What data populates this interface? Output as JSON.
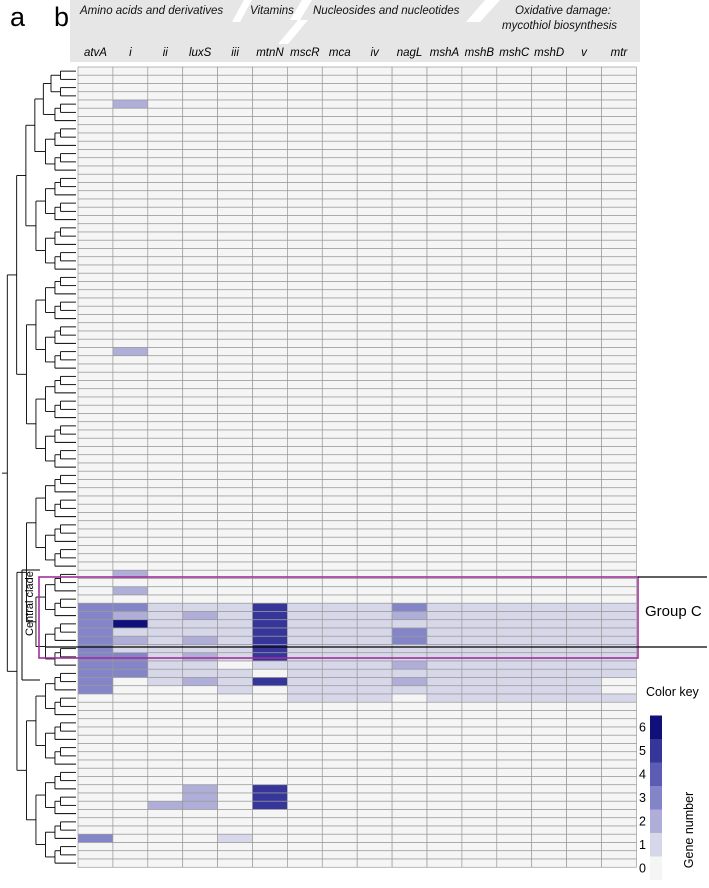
{
  "figure": {
    "panel_a": "a",
    "panel_b": "b",
    "categories": [
      "Amino acids and derivatives",
      "Vitamins",
      "Nucleosides and nucleotides",
      "Oxidative damage:",
      "mycothiol biosynthesis"
    ],
    "central_clade_label": "Central clade",
    "group_label": "Group C"
  },
  "chart_data": {
    "type": "heatmap",
    "columns": [
      "atvA",
      "i",
      "ii",
      "luxS",
      "iii",
      "mtnN",
      "mscR",
      "mca",
      "iv",
      "nagL",
      "mshA",
      "mshB",
      "mshC",
      "mshD",
      "v",
      "mtr"
    ],
    "n_rows": 97,
    "default_value": 0,
    "rows_with_values": [
      {
        "row": 4,
        "values": [
          0,
          2,
          0,
          0,
          0,
          0,
          0,
          0,
          0,
          0,
          0,
          0,
          0,
          0,
          0,
          0
        ]
      },
      {
        "row": 34,
        "values": [
          0,
          2,
          0,
          0,
          0,
          0,
          0,
          0,
          0,
          0,
          0,
          0,
          0,
          0,
          0,
          0
        ]
      },
      {
        "row": 61,
        "values": [
          0,
          2,
          0,
          0,
          0,
          0,
          0,
          0,
          0,
          0,
          0,
          0,
          0,
          0,
          0,
          0
        ]
      },
      {
        "row": 63,
        "values": [
          0,
          2,
          0,
          0,
          0,
          0,
          0,
          0,
          0,
          0,
          0,
          0,
          0,
          0,
          0,
          0
        ]
      },
      {
        "row": 65,
        "values": [
          3,
          3,
          1,
          1,
          1,
          5,
          1,
          1,
          1,
          3,
          1,
          1,
          1,
          1,
          1,
          1
        ]
      },
      {
        "row": 66,
        "values": [
          3,
          2,
          1,
          2,
          1,
          5,
          1,
          1,
          1,
          2,
          1,
          1,
          1,
          1,
          1,
          1
        ]
      },
      {
        "row": 67,
        "values": [
          3,
          6,
          1,
          1,
          1,
          5,
          1,
          1,
          1,
          1,
          1,
          1,
          1,
          1,
          1,
          1
        ]
      },
      {
        "row": 68,
        "values": [
          3,
          1,
          1,
          1,
          1,
          5,
          1,
          1,
          1,
          3,
          1,
          1,
          1,
          1,
          1,
          1
        ]
      },
      {
        "row": 69,
        "values": [
          3,
          2,
          1,
          2,
          1,
          5,
          1,
          1,
          1,
          3,
          1,
          1,
          1,
          1,
          1,
          1
        ]
      },
      {
        "row": 70,
        "values": [
          3,
          1,
          1,
          1,
          1,
          5,
          1,
          1,
          1,
          1,
          1,
          1,
          1,
          1,
          1,
          1
        ]
      },
      {
        "row": 71,
        "values": [
          3,
          3,
          1,
          2,
          1,
          5,
          1,
          1,
          1,
          1,
          1,
          1,
          1,
          1,
          1,
          1
        ]
      },
      {
        "row": 72,
        "values": [
          3,
          3,
          1,
          1,
          0,
          1,
          1,
          1,
          1,
          2,
          1,
          1,
          1,
          1,
          1,
          1
        ]
      },
      {
        "row": 73,
        "values": [
          3,
          3,
          1,
          1,
          1,
          0,
          1,
          1,
          1,
          1,
          1,
          1,
          1,
          1,
          1,
          1
        ]
      },
      {
        "row": 74,
        "values": [
          3,
          0,
          1,
          2,
          1,
          5,
          1,
          1,
          1,
          2,
          1,
          1,
          1,
          1,
          1,
          0
        ]
      },
      {
        "row": 75,
        "values": [
          3,
          0,
          0,
          0,
          1,
          0,
          1,
          1,
          1,
          1,
          1,
          1,
          1,
          1,
          1,
          0
        ]
      },
      {
        "row": 76,
        "values": [
          0,
          0,
          0,
          0,
          0,
          0,
          1,
          1,
          1,
          0,
          1,
          1,
          1,
          1,
          1,
          1
        ]
      },
      {
        "row": 87,
        "values": [
          0,
          0,
          0,
          2,
          0,
          5,
          0,
          0,
          0,
          0,
          0,
          0,
          0,
          0,
          0,
          0
        ]
      },
      {
        "row": 88,
        "values": [
          0,
          0,
          0,
          2,
          0,
          5,
          0,
          0,
          0,
          0,
          0,
          0,
          0,
          0,
          0,
          0
        ]
      },
      {
        "row": 89,
        "values": [
          0,
          0,
          2,
          2,
          0,
          5,
          0,
          0,
          0,
          0,
          0,
          0,
          0,
          0,
          0,
          0
        ]
      },
      {
        "row": 90,
        "values": [
          0,
          0,
          0,
          0,
          0,
          0,
          0,
          0,
          0,
          0,
          0,
          0,
          0,
          0,
          0,
          0
        ]
      },
      {
        "row": 93,
        "values": [
          3,
          0,
          0,
          0,
          1,
          0,
          0,
          0,
          0,
          0,
          0,
          0,
          0,
          0,
          0,
          0
        ]
      }
    ],
    "color_key": {
      "title": "Color key",
      "label": "Gene number",
      "levels": [
        0,
        1,
        2,
        3,
        4,
        5,
        6
      ],
      "colors": [
        "#f5f5f5",
        "#d7d7ea",
        "#aeaed8",
        "#8484c8",
        "#5c5cb2",
        "#36369a",
        "#10107a"
      ]
    },
    "tree_leaf_count": 97,
    "central_clade_rows": [
      63,
      80
    ],
    "group_c_rows": [
      65,
      73
    ]
  }
}
